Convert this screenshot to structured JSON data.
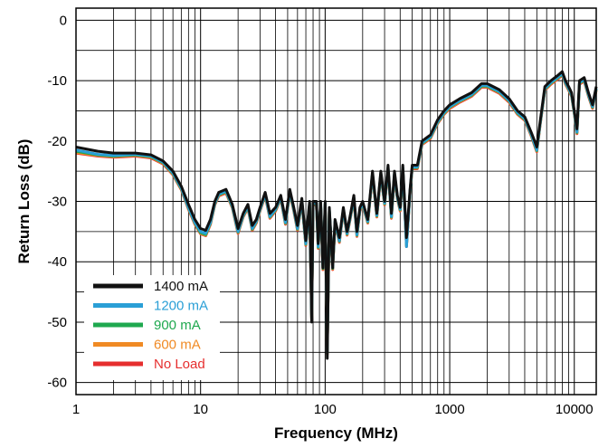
{
  "chart_data": {
    "type": "line",
    "title": "",
    "xlabel": "Frequency (MHz)",
    "ylabel": "Return Loss (dB)",
    "xscale": "log",
    "xlim": [
      1,
      15000
    ],
    "ylim": [
      -62,
      2
    ],
    "grid": true,
    "legend_position": "bottom-left",
    "x_ticks": [
      1,
      10,
      100,
      1000,
      10000
    ],
    "x_tick_labels": [
      "1",
      "10",
      "100",
      "1000",
      "10000"
    ],
    "y_ticks": [
      0,
      -10,
      -20,
      -30,
      -40,
      -50,
      -60
    ],
    "y_tick_labels": [
      "0",
      "-10",
      "-20",
      "-30",
      "-40",
      "-50",
      "-60"
    ],
    "x": [
      1,
      1.5,
      2,
      3,
      4,
      5,
      6,
      7,
      8,
      9,
      10,
      11,
      12,
      13,
      14,
      16,
      18,
      20,
      22,
      24,
      26,
      28,
      30,
      33,
      36,
      40,
      44,
      48,
      52,
      56,
      60,
      65,
      70,
      75,
      78,
      80,
      85,
      88,
      92,
      96,
      100,
      104,
      108,
      115,
      120,
      130,
      140,
      150,
      160,
      170,
      180,
      190,
      200,
      220,
      240,
      260,
      280,
      300,
      320,
      340,
      360,
      380,
      400,
      420,
      450,
      480,
      500,
      550,
      600,
      700,
      800,
      900,
      1000,
      1200,
      1500,
      1800,
      2000,
      2500,
      3000,
      3500,
      4000,
      4500,
      4800,
      5000,
      5300,
      5800,
      6500,
      7500,
      8000,
      8500,
      9000,
      9500,
      10000,
      10500,
      11000,
      12000,
      13000,
      14000,
      15000
    ],
    "series": [
      {
        "name": "1400 mA",
        "color": "#111111",
        "values": [
          -21,
          -21.7,
          -22,
          -22,
          -22.3,
          -23.3,
          -25,
          -27.5,
          -30.5,
          -33,
          -34.5,
          -34.8,
          -33,
          -30,
          -28.5,
          -28,
          -30.5,
          -34.5,
          -32,
          -30.5,
          -34,
          -33,
          -31,
          -28.5,
          -32,
          -31,
          -29,
          -33,
          -28,
          -31,
          -34,
          -29.5,
          -36.5,
          -30,
          -50,
          -30,
          -30,
          -37,
          -30,
          -41,
          -30,
          -56,
          -31,
          -41,
          -33,
          -36,
          -31,
          -35,
          -32,
          -29,
          -35,
          -31,
          -30,
          -33,
          -25,
          -32,
          -25,
          -30,
          -24,
          -32,
          -25,
          -29,
          -31,
          -24,
          -36,
          -28,
          -24,
          -24,
          -20,
          -19,
          -16.5,
          -15,
          -14,
          -13,
          -12,
          -10.5,
          -10.5,
          -11.5,
          -13,
          -15,
          -16,
          -18.5,
          -20,
          -21,
          -17,
          -11,
          -10,
          -9,
          -8.5,
          -10,
          -11,
          -12,
          -15,
          -18,
          -10,
          -9.5,
          -12,
          -14,
          -11
        ]
      },
      {
        "name": "1200 mA",
        "color": "#2a9fd6",
        "values": [
          -21.5,
          -22.2,
          -22.4,
          -22.2,
          -22.5,
          -23.5,
          -25.3,
          -27.8,
          -31,
          -33.5,
          -35,
          -35.3,
          -33.5,
          -30.3,
          -28.8,
          -28.3,
          -30.8,
          -35,
          -32.3,
          -30.8,
          -34.5,
          -33.3,
          -31.3,
          -28.8,
          -32.5,
          -31.3,
          -29.3,
          -33.5,
          -28.3,
          -31.3,
          -34.5,
          -29.8,
          -37,
          -30.3,
          -49.5,
          -30.3,
          -30.3,
          -37.5,
          -30.3,
          -41,
          -30.3,
          -55,
          -31.3,
          -41,
          -33.3,
          -36.5,
          -31.3,
          -35.3,
          -32.3,
          -29.3,
          -35.5,
          -31.3,
          -30.3,
          -33.3,
          -25.3,
          -32.3,
          -25.3,
          -30.3,
          -24.3,
          -32.5,
          -25.3,
          -29.3,
          -31.3,
          -24.3,
          -37.5,
          -28.3,
          -24.3,
          -24.3,
          -20.3,
          -19.3,
          -16.8,
          -15.3,
          -14.3,
          -13.3,
          -12.3,
          -10.8,
          -10.8,
          -11.8,
          -13.3,
          -15.3,
          -16.3,
          -18.8,
          -20.5,
          -21.5,
          -17.3,
          -11.3,
          -10.3,
          -9.3,
          -8.8,
          -10.3,
          -11.3,
          -12.3,
          -15.3,
          -18.5,
          -10.3,
          -9.8,
          -12.3,
          -14.3,
          -11.3
        ]
      },
      {
        "name": "900 mA",
        "color": "#1fa84f",
        "values": [
          -21.7,
          -22.3,
          -22.5,
          -22.3,
          -22.6,
          -23.6,
          -25.4,
          -27.9,
          -31.1,
          -33.6,
          -35.2,
          -35.5,
          -33.6,
          -30.4,
          -28.9,
          -28.4,
          -30.9,
          -35.1,
          -32.4,
          -30.9,
          -34.6,
          -33.4,
          -31.4,
          -28.9,
          -32.6,
          -31.4,
          -29.4,
          -33.6,
          -28.4,
          -31.4,
          -34.6,
          -29.9,
          -37.1,
          -30.4,
          -49.6,
          -30.4,
          -30.4,
          -37.6,
          -30.4,
          -41.1,
          -30.4,
          -55.1,
          -31.4,
          -41.1,
          -33.4,
          -36.6,
          -31.4,
          -35.4,
          -32.4,
          -29.4,
          -35.6,
          -31.4,
          -30.4,
          -33.4,
          -25.4,
          -32.4,
          -25.4,
          -30.4,
          -24.4,
          -32.6,
          -25.4,
          -29.4,
          -31.4,
          -24.4,
          -37.3,
          -28.4,
          -24.4,
          -24.4,
          -20.4,
          -19.4,
          -16.9,
          -15.4,
          -14.4,
          -13.4,
          -12.4,
          -10.9,
          -10.9,
          -11.9,
          -13.4,
          -15.4,
          -16.4,
          -18.9,
          -20.6,
          -21.6,
          -17.4,
          -11.4,
          -10.4,
          -9.4,
          -8.9,
          -10.4,
          -11.4,
          -12.4,
          -15.4,
          -18.6,
          -10.4,
          -9.9,
          -12.4,
          -14.4,
          -11.4
        ]
      },
      {
        "name": "600 mA",
        "color": "#f08a24",
        "values": [
          -21.9,
          -22.4,
          -22.6,
          -22.4,
          -22.7,
          -23.7,
          -25.5,
          -28,
          -31.2,
          -33.7,
          -35.3,
          -35.6,
          -33.7,
          -30.5,
          -29,
          -28.5,
          -31,
          -35.2,
          -32.5,
          -31,
          -34.7,
          -33.5,
          -31.5,
          -29,
          -32.7,
          -31.5,
          -29.5,
          -33.7,
          -28.5,
          -31.5,
          -34.7,
          -30,
          -37.2,
          -30.5,
          -49.7,
          -30.5,
          -30.5,
          -37.7,
          -30.5,
          -41.2,
          -30.5,
          -55.2,
          -31.5,
          -41.2,
          -33.5,
          -36.7,
          -31.5,
          -35.5,
          -32.5,
          -29.5,
          -35.7,
          -31.5,
          -30.5,
          -33.5,
          -25.5,
          -32.5,
          -25.5,
          -30.5,
          -24.5,
          -32.7,
          -25.5,
          -29.5,
          -31.5,
          -24.5,
          -37.4,
          -28.5,
          -24.5,
          -24.5,
          -20.5,
          -19.5,
          -17,
          -15.5,
          -14.5,
          -13.5,
          -12.5,
          -11,
          -11,
          -12,
          -13.5,
          -15.5,
          -16.5,
          -19,
          -20.7,
          -21.7,
          -17.5,
          -11.5,
          -10.5,
          -9.5,
          -9,
          -10.5,
          -11.5,
          -12.5,
          -15.5,
          -18.7,
          -10.5,
          -10,
          -12.5,
          -14.5,
          -11.5
        ]
      },
      {
        "name": "No Load",
        "color": "#e62e2e",
        "values": [
          -22,
          -22.5,
          -22.7,
          -22.5,
          -22.8,
          -23.8,
          -25.6,
          -28.1,
          -31.3,
          -33.8,
          -35.4,
          -35.7,
          -33.8,
          -30.6,
          -29.1,
          -28.6,
          -31.1,
          -35.3,
          -32.6,
          -31.1,
          -34.8,
          -33.6,
          -31.6,
          -29.1,
          -32.8,
          -31.6,
          -29.6,
          -33.8,
          -28.6,
          -31.6,
          -34.8,
          -30.1,
          -37.3,
          -30.6,
          -49.8,
          -30.6,
          -30.6,
          -37.8,
          -30.6,
          -41.3,
          -30.6,
          -55.3,
          -31.6,
          -41.3,
          -33.6,
          -36.8,
          -31.6,
          -35.6,
          -32.6,
          -29.6,
          -35.8,
          -31.6,
          -30.6,
          -33.6,
          -25.6,
          -32.6,
          -25.6,
          -30.6,
          -24.6,
          -32.8,
          -25.6,
          -29.6,
          -31.6,
          -24.6,
          -37.5,
          -28.6,
          -24.6,
          -24.6,
          -20.6,
          -19.6,
          -17.1,
          -15.6,
          -14.6,
          -13.6,
          -12.6,
          -11.1,
          -11.1,
          -12.1,
          -13.6,
          -15.6,
          -16.6,
          -19.1,
          -20.8,
          -21.8,
          -17.6,
          -11.6,
          -10.6,
          -9.6,
          -9.1,
          -10.6,
          -11.6,
          -12.6,
          -15.6,
          -18.8,
          -10.6,
          -10.1,
          -12.6,
          -14.6,
          -11.6
        ]
      }
    ]
  }
}
